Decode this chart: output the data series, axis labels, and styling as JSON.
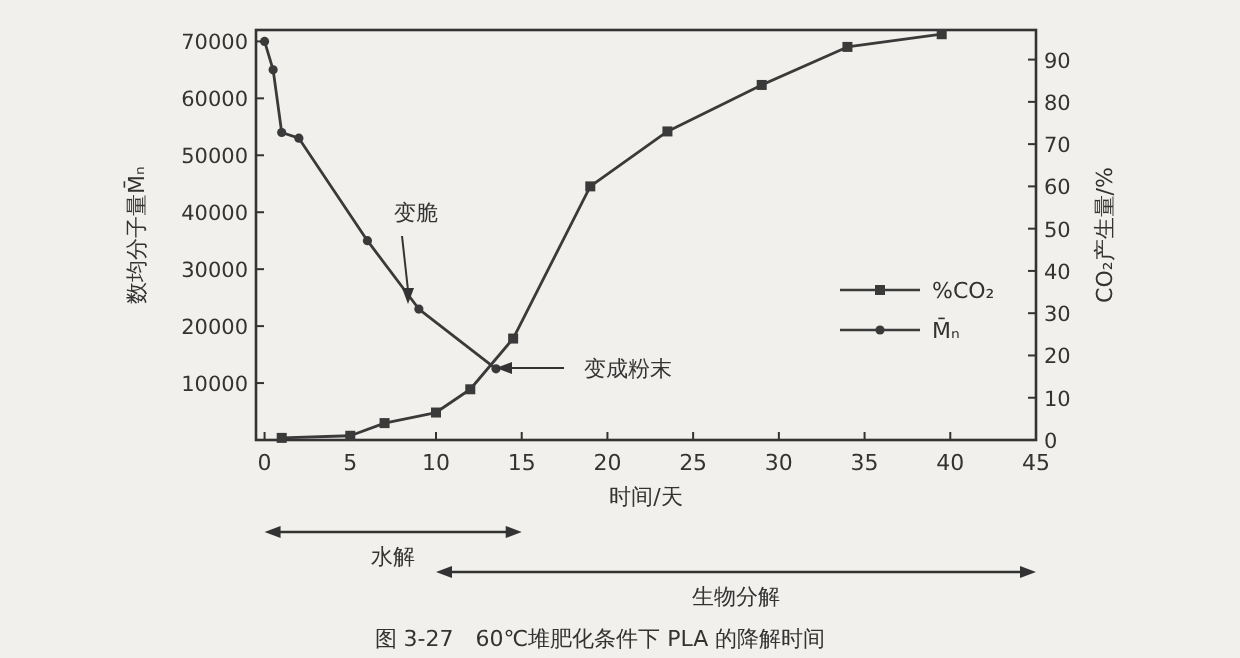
{
  "chart_data": {
    "type": "line",
    "title": "图 3-27　60℃堆肥化条件下 PLA 的降解时间",
    "xlabel": "时间/天",
    "ylabel": "数均分子量M̄ₙ",
    "y2label": "CO₂产生量/%",
    "xlim": [
      -0.5,
      45
    ],
    "xticks": [
      0,
      5,
      10,
      15,
      20,
      25,
      30,
      35,
      40,
      45
    ],
    "ylim": [
      0,
      72000
    ],
    "yticks": [
      10000,
      20000,
      30000,
      40000,
      50000,
      60000,
      70000
    ],
    "y2lim": [
      0,
      97
    ],
    "y2ticks": [
      0,
      10,
      20,
      30,
      40,
      50,
      60,
      70,
      80,
      90
    ],
    "grid": false,
    "legend": "right",
    "series": [
      {
        "name": "%CO₂",
        "color": "#3a3a3a",
        "axis": "y2",
        "marker": "square",
        "x": [
          1,
          5,
          7,
          10,
          12,
          14.5,
          19,
          23.5,
          29,
          34,
          39.5
        ],
        "values": [
          0.5,
          1,
          4,
          6.5,
          12,
          24,
          60,
          73,
          84,
          93,
          96
        ]
      },
      {
        "name": "M̄ₙ",
        "color": "#3a3a3a",
        "axis": "y",
        "marker": "circle",
        "x": [
          0,
          0.5,
          1,
          2,
          6,
          9,
          13.5
        ],
        "values": [
          70000,
          65000,
          54000,
          53000,
          35000,
          23000,
          12500
        ]
      }
    ],
    "annotations": [
      "变脆",
      "变成粉末",
      "水解",
      "生物分解"
    ]
  }
}
